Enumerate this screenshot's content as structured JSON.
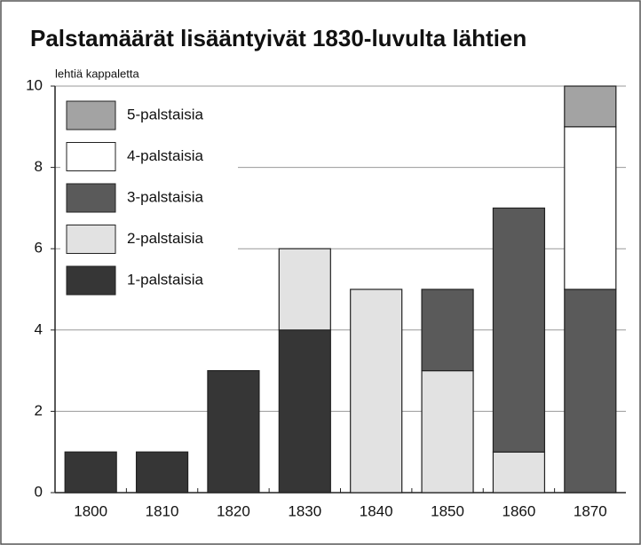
{
  "chart_data": {
    "type": "bar",
    "stacked": true,
    "title": "Palstamäärät lisääntyivät 1830-luvulta lähtien",
    "y_label": "lehtiä kappaletta",
    "categories": [
      "1800",
      "1810",
      "1820",
      "1830",
      "1840",
      "1850",
      "1860",
      "1870"
    ],
    "series": [
      {
        "name": "1-palstaisia",
        "color": "#363636",
        "values": [
          1,
          1,
          3,
          4,
          0,
          0,
          0,
          0
        ]
      },
      {
        "name": "2-palstaisia",
        "color": "#e2e2e2",
        "values": [
          0,
          0,
          0,
          2,
          5,
          3,
          1,
          0
        ]
      },
      {
        "name": "3-palstaisia",
        "color": "#5a5a5a",
        "values": [
          0,
          0,
          0,
          0,
          0,
          2,
          6,
          5
        ]
      },
      {
        "name": "4-palstaisia",
        "color": "#ffffff",
        "values": [
          0,
          0,
          0,
          0,
          0,
          0,
          0,
          4
        ]
      },
      {
        "name": "5-palstaisia",
        "color": "#a3a3a3",
        "values": [
          0,
          0,
          0,
          0,
          0,
          0,
          0,
          1
        ]
      }
    ],
    "ylim": [
      0,
      10
    ],
    "yticks": [
      0,
      2,
      4,
      6,
      8,
      10
    ],
    "grid": true,
    "legend": "upper left"
  }
}
